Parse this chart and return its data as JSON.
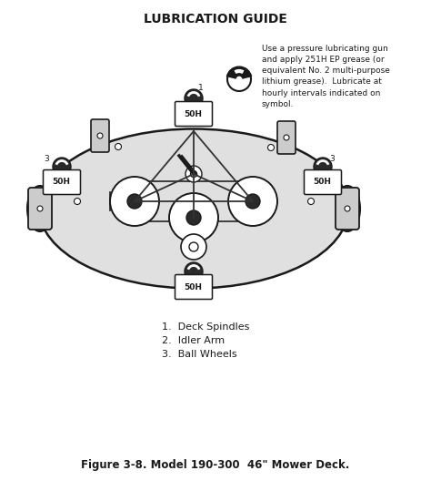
{
  "title": "LUBRICATION GUIDE",
  "figure_caption": "Figure 3-8. Model 190-300  46\" Mower Deck.",
  "legend_items": [
    "1.  Deck Spindles",
    "2.  Idler Arm",
    "3.  Ball Wheels"
  ],
  "note_text": "Use a pressure lubricating gun\nand apply 251H EP grease (or\nequivalent No. 2 multi-purpose\nlithium grease).  Lubricate at\nhourly intervals indicated on\nsymbol.",
  "bg_color": "#ffffff",
  "line_color": "#1a1a1a",
  "dark_fill": "#2a2a2a",
  "light_fill": "#d8d8d8",
  "label_50h": "50H"
}
